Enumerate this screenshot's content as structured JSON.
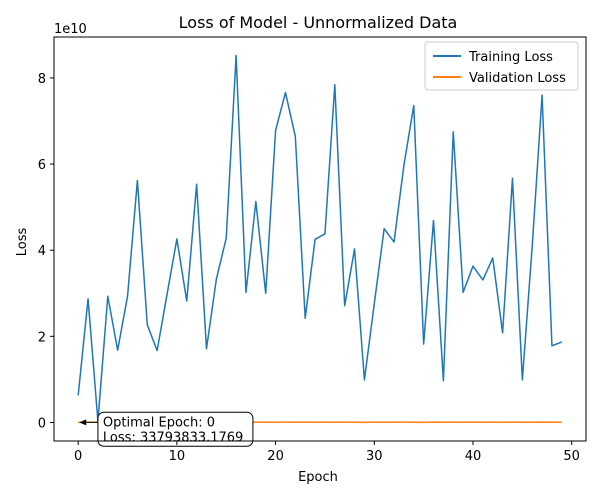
{
  "chart_data": {
    "type": "line",
    "title": "Loss of Model - Unnormalized Data",
    "xlabel": "Epoch",
    "ylabel": "Loss",
    "y_offset_label": "1e10",
    "xlim": [
      -2.45,
      51.45
    ],
    "ylim": [
      -0.43,
      8.95
    ],
    "y_unit": "1e10",
    "x_ticks": [
      0,
      10,
      20,
      30,
      40,
      50
    ],
    "y_ticks": [
      0,
      2,
      4,
      6,
      8
    ],
    "grid": false,
    "legend_position": "top-right",
    "x": [
      0,
      1,
      2,
      3,
      4,
      5,
      6,
      7,
      8,
      9,
      10,
      11,
      12,
      13,
      14,
      15,
      16,
      17,
      18,
      19,
      20,
      21,
      22,
      23,
      24,
      25,
      26,
      27,
      28,
      29,
      30,
      31,
      32,
      33,
      34,
      35,
      36,
      37,
      38,
      39,
      40,
      41,
      42,
      43,
      44,
      45,
      46,
      47,
      48,
      49
    ],
    "series": [
      {
        "name": "Training Loss",
        "color": "#1f77b4",
        "values": [
          0.63,
          2.87,
          0.03,
          2.93,
          1.68,
          2.93,
          5.62,
          2.27,
          1.67,
          2.97,
          4.26,
          2.82,
          5.53,
          1.71,
          3.33,
          4.28,
          8.52,
          3.02,
          5.13,
          3.0,
          6.78,
          7.66,
          6.64,
          2.42,
          4.25,
          4.38,
          7.84,
          2.71,
          4.03,
          0.99,
          2.76,
          4.5,
          4.19,
          5.97,
          7.36,
          1.82,
          4.69,
          0.97,
          6.75,
          3.02,
          3.63,
          3.31,
          3.82,
          2.08,
          5.67,
          0.99,
          4.09,
          7.6,
          1.78,
          1.87
        ]
      },
      {
        "name": "Validation Loss",
        "color": "#ff7f0e",
        "values": [
          0.003,
          0.004,
          0.005,
          0.006,
          0.005,
          0.007,
          0.006,
          0.008,
          0.006,
          0.007,
          0.006,
          0.008,
          0.007,
          0.006,
          0.007,
          0.008,
          0.007,
          0.006,
          0.008,
          0.004,
          0.006,
          0.007,
          0.005,
          0.008,
          0.006,
          0.007,
          0.006,
          0.008,
          0.005,
          0.003,
          0.007,
          0.006,
          0.008,
          0.007,
          0.006,
          0.003,
          0.009,
          0.005,
          0.008,
          0.006,
          0.007,
          0.005,
          0.008,
          0.006,
          0.007,
          0.004,
          0.006,
          0.009,
          0.005,
          0.006
        ]
      }
    ],
    "annotation": {
      "text_line1": "Optimal Epoch: 0",
      "text_line2": "Loss: 33793833.1769",
      "point_x": 0,
      "point_y": 0.0034,
      "text_x": 2,
      "text_y": 0.33
    }
  }
}
